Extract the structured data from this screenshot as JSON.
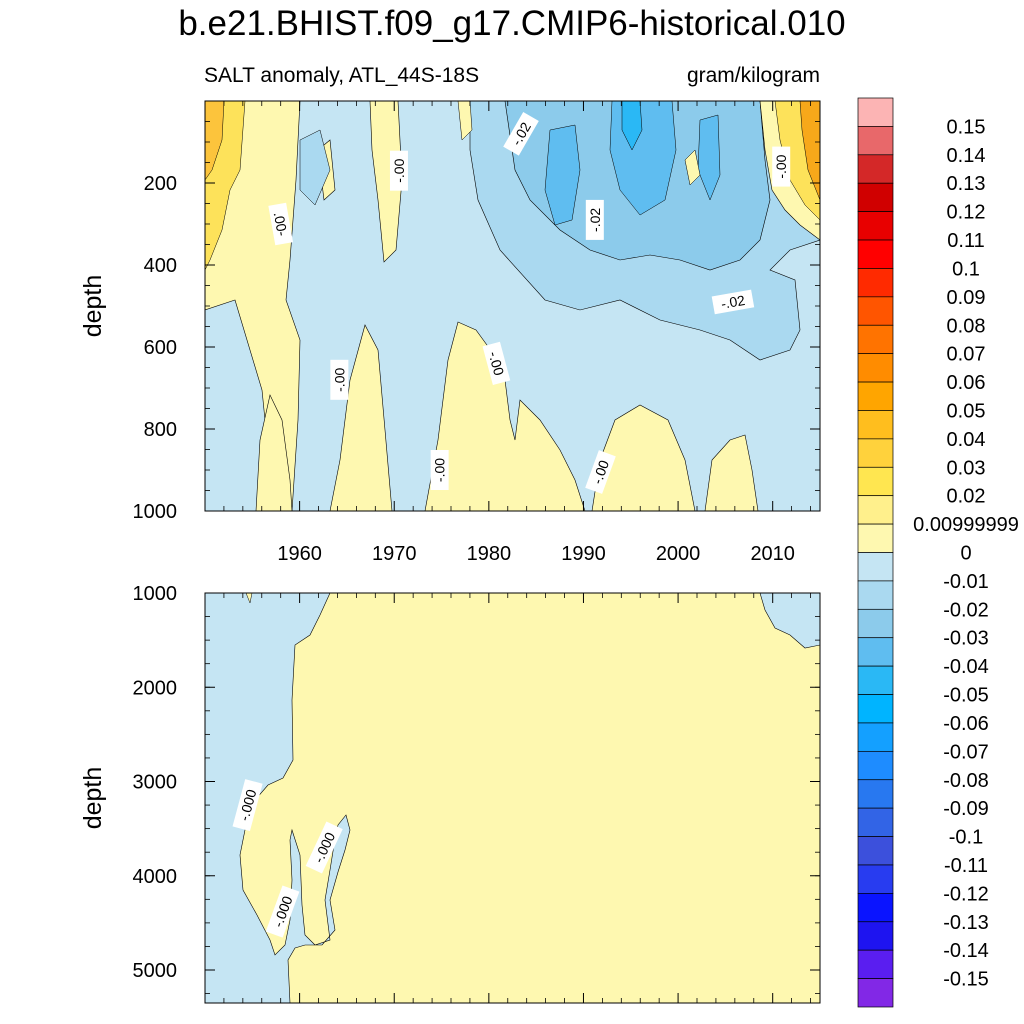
{
  "title": "b.e21.BHIST.f09_g17.CMIP6-historical.010",
  "subtitle_left": "SALT anomaly, ATL_44S-18S",
  "subtitle_right": "gram/kilogram",
  "colors": {
    "neg_light": "#c5e5f3",
    "neg_mid1": "#aad9f0",
    "neg_mid2": "#8ccbeb",
    "neg_mid3": "#5fbdf0",
    "neg_mid4": "#2ab8f5",
    "pos_light": "#fef8b0",
    "pos_mid1": "#fde25a",
    "pos_mid2": "#fcc43c",
    "pos_mid3": "#f7a81a",
    "contour": "#000000"
  },
  "chart_data": [
    {
      "type": "contour",
      "panel": "upper",
      "xlabel": "",
      "ylabel": "depth",
      "xlim": [
        1950,
        2015
      ],
      "ylim": [
        1000,
        0
      ],
      "x_ticks": [
        1960,
        1970,
        1980,
        1990,
        2000,
        2010
      ],
      "x_tick_labels": [
        "1960",
        "1970",
        "1980",
        "1990",
        "2000",
        "2010"
      ],
      "y_ticks": [
        200,
        400,
        600,
        800,
        1000
      ],
      "y_tick_labels": [
        "200",
        "400",
        "600",
        "800",
        "1000"
      ],
      "contour_labels": [
        {
          "text": ".00-",
          "x": 1958.0,
          "y": 300,
          "angle": 80
        },
        {
          "text": "-.00",
          "x": 1970.5,
          "y": 170,
          "angle": -90
        },
        {
          "text": "-.02",
          "x": 1983.4,
          "y": 80,
          "angle": -60
        },
        {
          "text": "-.02",
          "x": 1991.2,
          "y": 290,
          "angle": -90
        },
        {
          "text": "-.00",
          "x": 1964.2,
          "y": 680,
          "angle": -90
        },
        {
          "text": "-.00",
          "x": 1980.8,
          "y": 640,
          "angle": 75
        },
        {
          "text": "-.00",
          "x": 1974.8,
          "y": 900,
          "angle": -90
        },
        {
          "text": "-.00",
          "x": 1991.8,
          "y": 905,
          "angle": -70
        },
        {
          "text": "-.02",
          "x": 2005.8,
          "y": 490,
          "angle": -10
        },
        {
          "text": "-.00",
          "x": 2010.9,
          "y": 160,
          "angle": -90
        }
      ]
    },
    {
      "type": "contour",
      "panel": "lower",
      "xlabel": "",
      "ylabel": "depth",
      "xlim": [
        1950,
        2015
      ],
      "ylim": [
        5350,
        1000
      ],
      "y_ticks": [
        1000,
        2000,
        3000,
        4000,
        5000
      ],
      "y_tick_labels": [
        "1000",
        "2000",
        "3000",
        "4000",
        "5000"
      ],
      "contour_labels": [
        {
          "text": "-.000",
          "x": 1954.5,
          "y": 3250,
          "angle": -75
        },
        {
          "text": "-.000",
          "x": 1962.6,
          "y": 3700,
          "angle": -65
        },
        {
          "text": "-.000",
          "x": 1958.2,
          "y": 4380,
          "angle": -70
        }
      ]
    },
    {
      "type": "colorbar",
      "levels": [
        "0.15",
        "0.14",
        "0.13",
        "0.12",
        "0.11",
        "0.1",
        "0.09",
        "0.08",
        "0.07",
        "0.06",
        "0.05",
        "0.04",
        "0.03",
        "0.02",
        "0.00999999",
        "0",
        "-0.01",
        "-0.02",
        "-0.03",
        "-0.04",
        "-0.05",
        "-0.06",
        "-0.07",
        "-0.08",
        "-0.09",
        "-0.1",
        "-0.11",
        "-0.12",
        "-0.13",
        "-0.14",
        "-0.15"
      ],
      "box_colors": [
        "#fcb4b4",
        "#e8686a",
        "#d42828",
        "#d00000",
        "#e80000",
        "#ff0000",
        "#ff2a00",
        "#ff5500",
        "#ff7300",
        "#ff8c00",
        "#ffa500",
        "#ffbe1e",
        "#ffd23c",
        "#ffe650",
        "#fff08c",
        "#fef8b0",
        "#c5e5f3",
        "#aad9f0",
        "#8ccbeb",
        "#5fbdf0",
        "#2ab8f5",
        "#00b4ff",
        "#14a0ff",
        "#1e8cff",
        "#2878f0",
        "#3264e6",
        "#3c50dc",
        "#283cf0",
        "#0a14ff",
        "#1e14f0",
        "#5a1ef0",
        "#8228e6"
      ]
    }
  ]
}
